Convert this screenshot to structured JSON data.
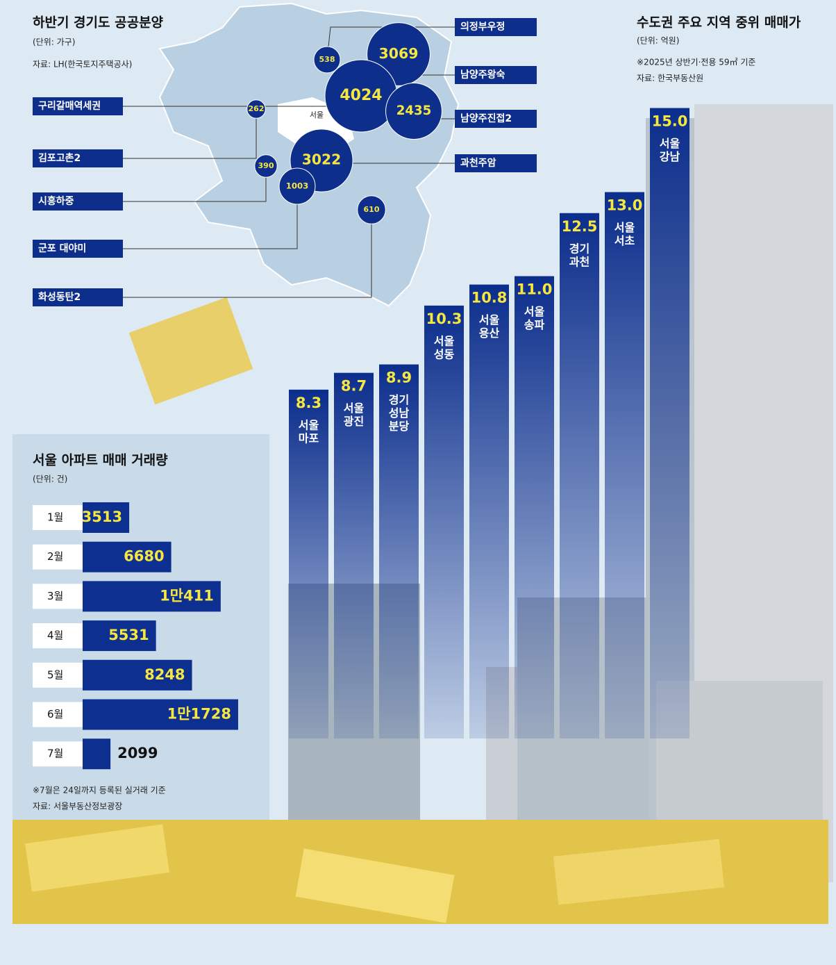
{
  "chart_data": [
    {
      "type": "bubble-map",
      "title": "하반기 경기도 공공분양",
      "subtitle": "(단위: 가구)",
      "source": "자료: LH(한국토지주택공사)",
      "annotation": "서울",
      "categories": [
        "의정부우정",
        "남양주왕숙",
        "구리갈매역세권",
        "남양주진접2",
        "김포고촌2",
        "과천주암",
        "시흥하중",
        "군포 대야미",
        "화성동탄2"
      ],
      "values": [
        538,
        3069,
        4024,
        2435,
        262,
        3022,
        390,
        1003,
        610
      ],
      "color": "#0d2e8a"
    },
    {
      "type": "bar",
      "title": "수도권 주요 지역 중위 매매가",
      "subtitle": "(단위: 억원)",
      "notes": [
        "※2025년 상반기·전용 59㎡ 기준",
        "자료: 한국부동산원"
      ],
      "categories": [
        [
          "서울",
          "마포"
        ],
        [
          "서울",
          "광진"
        ],
        [
          "경기",
          "성남",
          "분당"
        ],
        [
          "서울",
          "성동"
        ],
        [
          "서울",
          "용산"
        ],
        [
          "서울",
          "송파"
        ],
        [
          "경기",
          "과천"
        ],
        [
          "서울",
          "서초"
        ],
        [
          "서울",
          "강남"
        ]
      ],
      "values": [
        8.3,
        8.7,
        8.9,
        10.3,
        10.8,
        11.0,
        12.5,
        13.0,
        15.0
      ],
      "value_labels": [
        "8.3",
        "8.7",
        "8.9",
        "10.3",
        "10.8",
        "11.0",
        "12.5",
        "13.0",
        "15.0"
      ],
      "color": "#0b2d8c"
    },
    {
      "type": "hbar",
      "title": "서울 아파트 매매 거래량",
      "subtitle": "(단위: 건)",
      "notes": [
        "※7월은 24일까지 등록된 실거래 기준",
        "자료: 서울부동산정보광장"
      ],
      "categories": [
        "1월",
        "2월",
        "3월",
        "4월",
        "5월",
        "6월",
        "7월"
      ],
      "values": [
        3513,
        6680,
        10411,
        5531,
        8248,
        11728,
        2099
      ],
      "value_labels": [
        "3513",
        "6680",
        "1만411",
        "5531",
        "8248",
        "1만1728",
        "2099"
      ],
      "color": "#0d2f8f"
    }
  ]
}
